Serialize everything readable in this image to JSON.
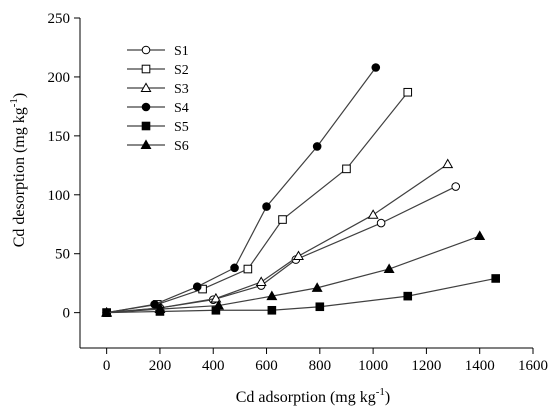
{
  "chart_data": {
    "type": "line",
    "title": "",
    "xlabel": "Cd adsorption (mg kg",
    "xlabel_sup": "-1",
    "xlabel_tail": ")",
    "ylabel": "Cd desorption (mg kg",
    "ylabel_sup": "-1",
    "ylabel_tail": ")",
    "xlim": [
      -100,
      1600
    ],
    "ylim": [
      -30,
      250
    ],
    "xticks": [
      0,
      200,
      400,
      600,
      800,
      1000,
      1200,
      1400,
      1600
    ],
    "yticks": [
      0,
      50,
      100,
      150,
      200,
      250
    ],
    "xtick_labels": [
      "0",
      "200",
      "400",
      "600",
      "800",
      "1000",
      "1200",
      "1400",
      "1600"
    ],
    "ytick_labels": [
      "0",
      "50",
      "100",
      "150",
      "200",
      "250"
    ],
    "grid": false,
    "legend_position": "top-left",
    "series": [
      {
        "name": "S1",
        "marker": "circle-open",
        "x": [
          0,
          200,
          400,
          580,
          710,
          1030,
          1310
        ],
        "y": [
          0,
          4,
          11,
          23,
          45,
          76,
          107
        ]
      },
      {
        "name": "S2",
        "marker": "square-open",
        "x": [
          0,
          190,
          360,
          530,
          660,
          900,
          1130
        ],
        "y": [
          0,
          7,
          20,
          37,
          79,
          122,
          187
        ]
      },
      {
        "name": "S3",
        "marker": "triangle-open",
        "x": [
          0,
          200,
          410,
          580,
          720,
          1000,
          1280
        ],
        "y": [
          0,
          4,
          12,
          26,
          48,
          83,
          126
        ]
      },
      {
        "name": "S4",
        "marker": "circle-filled",
        "x": [
          0,
          180,
          340,
          480,
          600,
          790,
          1010
        ],
        "y": [
          0,
          7,
          22,
          38,
          90,
          141,
          208
        ]
      },
      {
        "name": "S5",
        "marker": "square-filled",
        "x": [
          0,
          200,
          410,
          620,
          800,
          1130,
          1460
        ],
        "y": [
          0,
          1,
          2,
          2,
          5,
          14,
          29
        ]
      },
      {
        "name": "S6",
        "marker": "triangle-filled",
        "x": [
          0,
          200,
          420,
          620,
          790,
          1060,
          1400
        ],
        "y": [
          0,
          3,
          6,
          14,
          21,
          37,
          65
        ]
      }
    ]
  }
}
